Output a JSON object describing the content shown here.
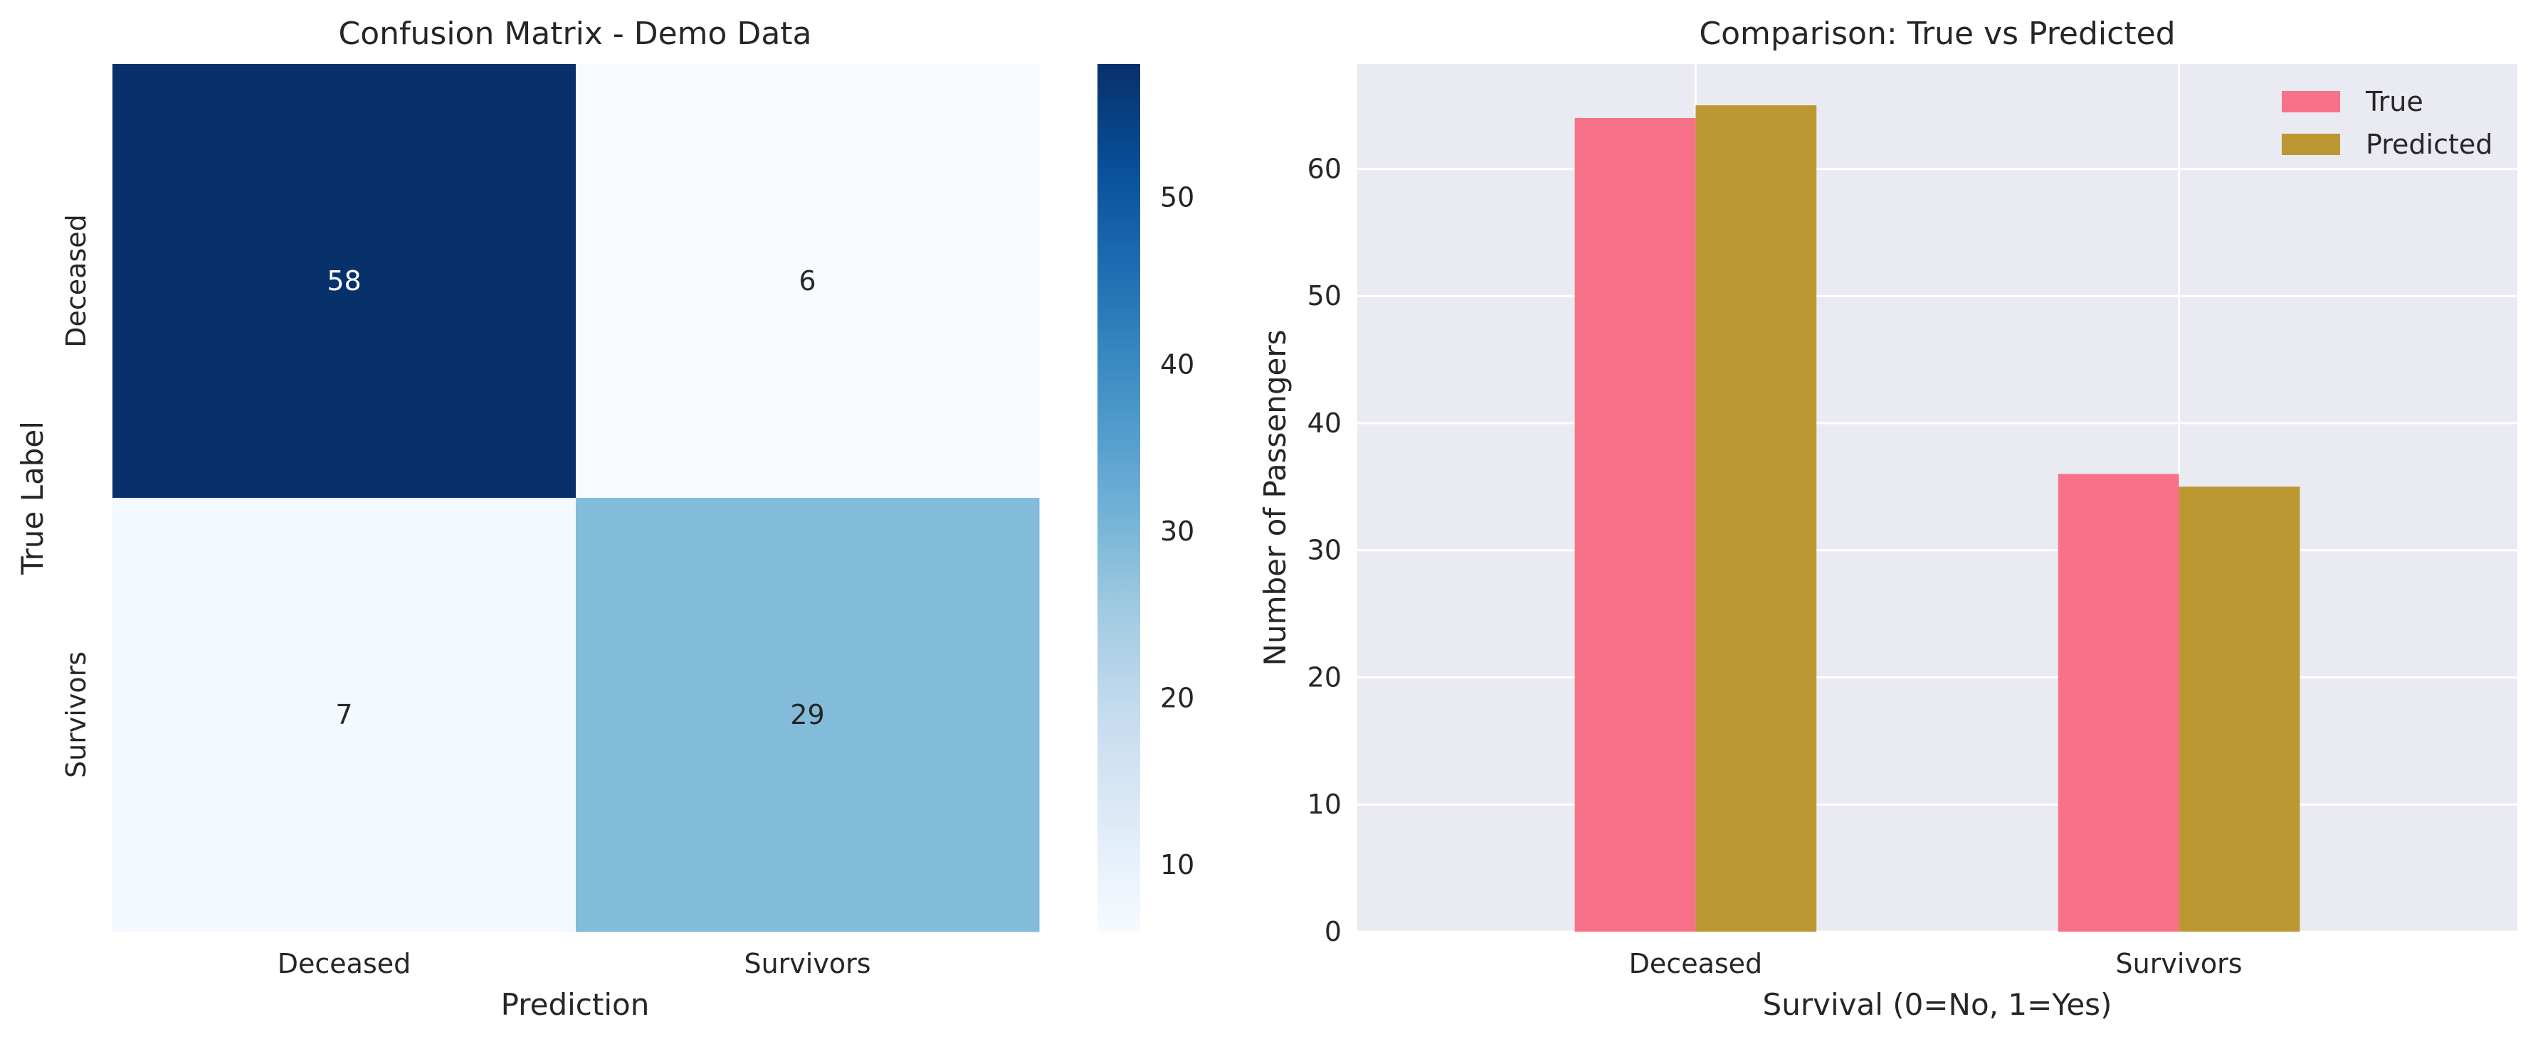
{
  "chart_data": [
    {
      "type": "heatmap",
      "title": "Confusion Matrix - Demo Data",
      "xlabel": "Prediction",
      "ylabel": "True Label",
      "x_categories": [
        "Deceased",
        "Survivors"
      ],
      "y_categories": [
        "Deceased",
        "Survivors"
      ],
      "values": [
        [
          58,
          6
        ],
        [
          7,
          29
        ]
      ],
      "colormap": "Blues",
      "colorbar": {
        "range": [
          6,
          58
        ],
        "ticks": [
          10,
          20,
          30,
          40,
          50
        ]
      }
    },
    {
      "type": "bar",
      "title": "Comparison: True vs Predicted",
      "xlabel": "Survival (0=No, 1=Yes)",
      "ylabel": "Number of Passengers",
      "categories": [
        "Deceased",
        "Survivors"
      ],
      "series": [
        {
          "name": "True",
          "values": [
            64,
            36
          ],
          "color": "#f77189"
        },
        {
          "name": "Predicted",
          "values": [
            65,
            35
          ],
          "color": "#bb9832"
        }
      ],
      "ylim": [
        0,
        68.25
      ],
      "yticks": [
        0,
        10,
        20,
        30,
        40,
        50,
        60
      ],
      "grid": true,
      "background": "#eaeaf2",
      "legend": "top-right"
    }
  ]
}
